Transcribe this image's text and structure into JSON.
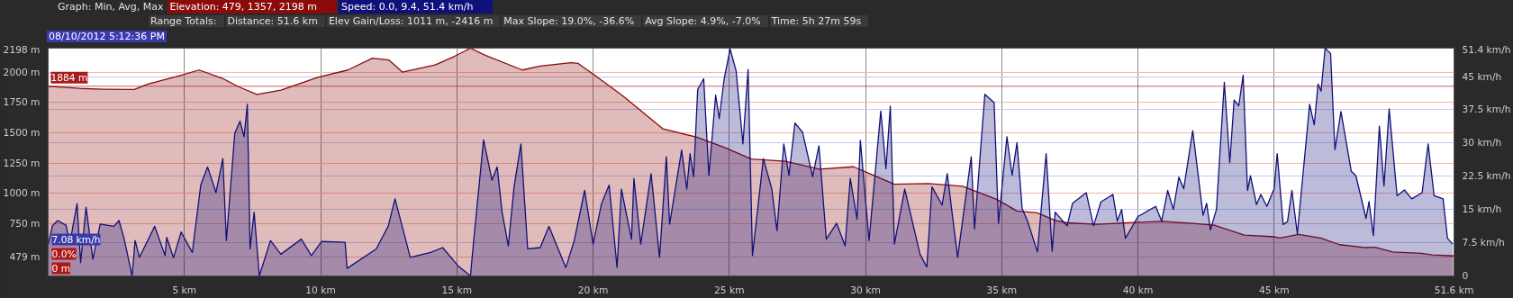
{
  "chart_data": {
    "type": "area",
    "legend_title": "Graph: Min, Avg, Max",
    "legend": "top left",
    "grid": true,
    "xlim": [
      0,
      51.6
    ],
    "xticks": [
      {
        "value": 5,
        "label": "5 km"
      },
      {
        "value": 10,
        "label": "10 km"
      },
      {
        "value": 15,
        "label": "15 km"
      },
      {
        "value": 20,
        "label": "20 km"
      },
      {
        "value": 25,
        "label": "25 km"
      },
      {
        "value": 30,
        "label": "30 km"
      },
      {
        "value": 35,
        "label": "35 km"
      },
      {
        "value": 40,
        "label": "40 km"
      },
      {
        "value": 45,
        "label": "45 km"
      },
      {
        "value": 51.6,
        "label": "51.6 km"
      }
    ],
    "ylim": [
      320,
      2198
    ],
    "yticks": [
      {
        "value": 479,
        "label": "479 m"
      },
      {
        "value": 750,
        "label": "750 m"
      },
      {
        "value": 1000,
        "label": "1000 m"
      },
      {
        "value": 1250,
        "label": "1250 m"
      },
      {
        "value": 1500,
        "label": "1500 m"
      },
      {
        "value": 1750,
        "label": "1750 m"
      },
      {
        "value": 2000,
        "label": "2000 m"
      },
      {
        "value": 2198,
        "label": "2198 m"
      }
    ],
    "y2lim": [
      0,
      51.4
    ],
    "y2ticks": [
      0,
      {
        "value": 7.5,
        "label": "7.5 km/h"
      },
      {
        "value": 15,
        "label": "15 km/h"
      },
      {
        "value": 22.5,
        "label": "22.5 km/h"
      },
      {
        "value": 30,
        "label": "30 km/h"
      },
      {
        "value": 37.5,
        "label": "37.5 km/h"
      },
      {
        "value": 45,
        "label": "45 km/h"
      },
      {
        "value": 51.4,
        "label": "51.4 km/h"
      }
    ],
    "series": [
      {
        "name": "Elevation: 479, 1357, 2198 m",
        "color": "#8b0a0a",
        "x": [
          0,
          1.16,
          2.04,
          3.16,
          3.66,
          4.79,
          5.54,
          6.4,
          7.0,
          7.66,
          8.54,
          9.9,
          11.0,
          11.9,
          12.5,
          13.0,
          14.2,
          14.9,
          15.5,
          16.0,
          17.4,
          18.06,
          19.19,
          19.44,
          20.0,
          21.06,
          22.56,
          23.81,
          24.81,
          25.81,
          27.06,
          28.31,
          29.56,
          30.19,
          31.06,
          32.31,
          33.56,
          34.81,
          35.56,
          36.3,
          36.96,
          37.4,
          38.5,
          40.0,
          40.9,
          42.0,
          42.8,
          43.9,
          45.0,
          45.2,
          45.9,
          46.7,
          47.4,
          48.3,
          48.7,
          49.35,
          50.4,
          50.8,
          51.6
        ],
        "values": [
          1884,
          1866,
          1860,
          1857,
          1902,
          1968,
          2018,
          1949,
          1879,
          1816,
          1852,
          1957,
          2018,
          2115,
          2101,
          2001,
          2060,
          2129,
          2198,
          2143,
          2018,
          2051,
          2079,
          2073,
          1985,
          1810,
          1533,
          1464,
          1381,
          1284,
          1265,
          1201,
          1220,
          1159,
          1076,
          1082,
          1060,
          952,
          855,
          840,
          777,
          758,
          746,
          763,
          770,
          753,
          739,
          657,
          643,
          633,
          662,
          633,
          578,
          554,
          557,
          518,
          506,
          494,
          485
        ]
      },
      {
        "name": "Speed: 0.0, 9.4, 51.4 km/h",
        "color": "#10107a",
        "axis": "y2",
        "x": [
          0,
          0.16,
          0.35,
          0.66,
          0.79,
          1.06,
          1.19,
          1.39,
          1.64,
          1.91,
          2.41,
          2.6,
          2.79,
          3.08,
          3.19,
          3.35,
          3.91,
          4.29,
          4.35,
          4.6,
          4.88,
          5.29,
          5.6,
          5.85,
          6.16,
          6.41,
          6.54,
          6.85,
          7.04,
          7.19,
          7.31,
          7.41,
          7.56,
          7.75,
          8.16,
          8.54,
          9.29,
          9.66,
          10.04,
          10.9,
          10.97,
          12.04,
          12.48,
          12.73,
          13.29,
          14.04,
          14.48,
          15.04,
          15.5,
          15.6,
          15.98,
          16.29,
          16.48,
          16.66,
          16.89,
          17.1,
          17.35,
          17.6,
          18.06,
          18.38,
          19.0,
          19.31,
          19.69,
          20.0,
          20.31,
          20.59,
          20.88,
          21.04,
          21.41,
          21.5,
          21.75,
          22.13,
          22.44,
          22.69,
          22.81,
          23.25,
          23.44,
          23.56,
          23.69,
          23.84,
          24.06,
          24.25,
          24.5,
          24.63,
          24.81,
          25.03,
          25.25,
          25.5,
          25.69,
          25.85,
          26.25,
          26.56,
          26.75,
          27.0,
          27.19,
          27.41,
          27.69,
          28.06,
          28.29,
          28.56,
          28.94,
          29.25,
          29.44,
          29.69,
          29.81,
          30.13,
          30.56,
          30.75,
          30.91,
          31.06,
          31.44,
          32.0,
          32.25,
          32.44,
          32.81,
          33.0,
          33.38,
          33.88,
          34.0,
          34.38,
          34.72,
          34.88,
          35.19,
          35.38,
          35.56,
          35.75,
          35.94,
          36.31,
          36.63,
          36.85,
          36.96,
          37.4,
          37.6,
          38.1,
          38.37,
          38.64,
          39.08,
          39.24,
          39.4,
          39.54,
          40.0,
          40.65,
          40.87,
          41.09,
          41.3,
          41.5,
          41.68,
          42.01,
          42.39,
          42.52,
          42.66,
          42.88,
          43.17,
          43.37,
          43.53,
          43.7,
          43.86,
          44.02,
          44.13,
          44.35,
          44.51,
          44.73,
          45.0,
          45.11,
          45.33,
          45.49,
          45.65,
          45.85,
          46.3,
          46.47,
          46.61,
          46.72,
          46.87,
          47.07,
          47.23,
          47.45,
          47.83,
          48.0,
          48.37,
          48.48,
          48.64,
          48.86,
          49.03,
          49.22,
          49.51,
          49.78,
          50.05,
          50.43,
          50.65,
          50.87,
          51.2,
          51.36,
          51.55
        ],
        "values": [
          7.1,
          11.4,
          12.5,
          11.4,
          7.2,
          16.3,
          3.0,
          15.5,
          3.8,
          11.7,
          11.2,
          12.5,
          8.3,
          0,
          8.0,
          4.2,
          11.2,
          4.6,
          8.7,
          4.1,
          9.9,
          5.3,
          20.5,
          24.6,
          18.8,
          26.5,
          8.0,
          32.2,
          34.9,
          31.4,
          38.7,
          6.1,
          14.4,
          0,
          8.0,
          4.9,
          8.3,
          4.6,
          7.8,
          7.6,
          1.7,
          6.1,
          11.2,
          17.4,
          4.2,
          5.3,
          6.4,
          2.3,
          0,
          6.8,
          30.7,
          21.6,
          24.6,
          14.4,
          6.8,
          20.1,
          29.8,
          6.1,
          6.4,
          11.2,
          1.9,
          8.0,
          19.3,
          7.2,
          16.3,
          20.5,
          1.9,
          19.6,
          8.3,
          22.0,
          7.2,
          23.1,
          4.2,
          26.9,
          11.7,
          28.4,
          19.6,
          27.6,
          22.4,
          42.1,
          44.5,
          22.7,
          40.8,
          35.5,
          44.4,
          51.2,
          46.3,
          29.8,
          46.6,
          4.6,
          26.5,
          19.6,
          10.2,
          29.8,
          22.7,
          34.5,
          32.4,
          22.4,
          29.4,
          8.3,
          11.9,
          6.8,
          22.0,
          12.8,
          30.6,
          8.0,
          37.2,
          24.2,
          38.3,
          7.2,
          19.6,
          4.9,
          2.0,
          20.1,
          16.0,
          23.1,
          4.2,
          26.9,
          10.6,
          41.0,
          39.1,
          11.9,
          31.4,
          22.7,
          30.1,
          15.2,
          12.5,
          5.4,
          27.6,
          5.6,
          14.4,
          11.3,
          16.4,
          18.8,
          11.3,
          16.7,
          18.4,
          12.4,
          15.0,
          8.5,
          13.4,
          15.7,
          12.4,
          19.3,
          15.0,
          22.3,
          19.7,
          32.8,
          13.7,
          16.4,
          10.4,
          15.0,
          43.7,
          25.6,
          39.7,
          38.4,
          45.3,
          19.3,
          22.6,
          16.1,
          18.4,
          15.7,
          19.7,
          27.6,
          11.6,
          12.3,
          19.3,
          9.5,
          38.7,
          34.1,
          43.3,
          41.7,
          51.4,
          50.2,
          28.5,
          37.1,
          23.6,
          22.6,
          13.0,
          16.8,
          9.1,
          33.8,
          20.3,
          37.7,
          18.1,
          19.4,
          17.4,
          18.8,
          29.8,
          18.1,
          17.4,
          8.5,
          7.2
        ]
      }
    ],
    "ref_lines": [
      {
        "axis": "y",
        "value": 1884,
        "label": "1884 m",
        "color": "#a81c1c"
      }
    ],
    "annotations": [
      "Range Totals:",
      "Distance: 51.6 km",
      "Elev Gain/Loss: 1011 m, -2416 m",
      "Max Slope: 19.0%, -36.6%",
      "Avg Slope: 4.9%, -7.0%",
      "Time: 5h 27m 59s",
      "08/10/2012 5:12:36 PM",
      "0.0%",
      "7.08 km/h",
      "0 m"
    ]
  }
}
